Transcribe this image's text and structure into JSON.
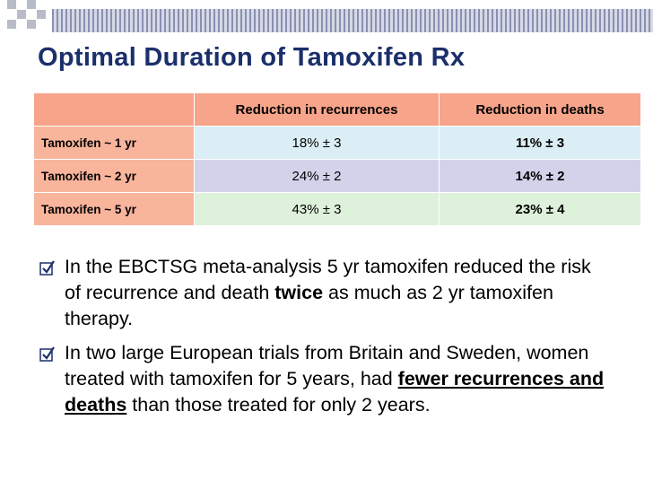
{
  "header": {
    "title": "Optimal Duration of Tamoxifen Rx"
  },
  "table": {
    "columns": [
      "Reduction in recurrences",
      "Reduction in deaths"
    ],
    "rows": [
      [
        "Tamoxifen ~ 1 yr",
        "18% ± 3",
        "11% ± 3"
      ],
      [
        "Tamoxifen ~ 2 yr",
        "24% ± 2",
        "14% ± 2"
      ],
      [
        "Tamoxifen ~ 5 yr",
        "43% ± 3",
        "23% ± 4"
      ]
    ]
  },
  "bullets": [
    [
      {
        "text": "In the EBCTSG meta-analysis 5 yr tamoxifen reduced the risk of recurrence and death "
      },
      {
        "text": "twice",
        "bold": true
      },
      {
        "text": " as much as 2 yr tamoxifen therapy."
      }
    ],
    [
      {
        "text": "In two large European trials from Britain and Sweden, women treated with tamoxifen for 5 years, had "
      },
      {
        "text": "fewer recurrences and deaths",
        "bold": true,
        "underline": true
      },
      {
        "text": " than those treated for only 2 years."
      }
    ]
  ]
}
